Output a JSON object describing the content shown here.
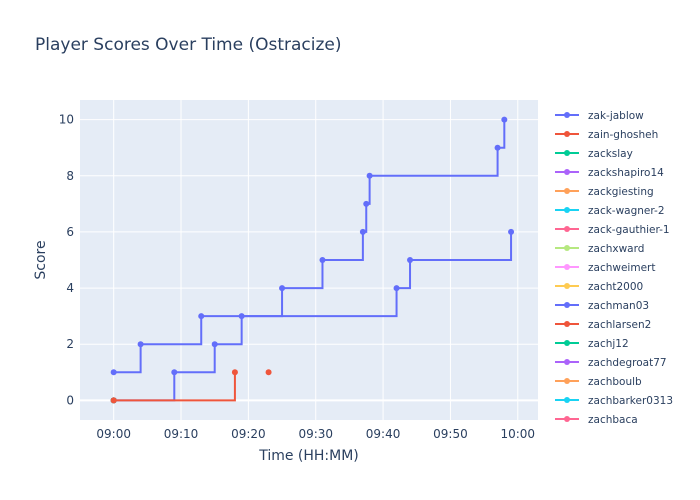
{
  "chart_data": {
    "type": "line",
    "line_shape": "step",
    "title": "Player Scores Over Time (Ostracize)",
    "xlabel": "Time (HH:MM)",
    "ylabel": "Score",
    "x_ticks": [
      "09:00",
      "09:10",
      "09:20",
      "09:30",
      "09:40",
      "09:50",
      "10:00"
    ],
    "y_ticks": [
      0,
      2,
      4,
      6,
      8,
      10
    ],
    "xlim": [
      "08:55",
      "10:03"
    ],
    "ylim": [
      -0.7,
      10.7
    ],
    "grid": true,
    "legend_position": "right",
    "series": [
      {
        "name": "zak-jablow",
        "color": "#636efa",
        "segments": [
          [
            [
              "09:00",
              1
            ],
            [
              "09:04",
              2
            ],
            [
              "09:13",
              3
            ],
            [
              "09:25",
              4
            ],
            [
              "09:31",
              5
            ],
            [
              "09:37",
              6
            ],
            [
              "09:37:30",
              7
            ],
            [
              "09:38",
              8
            ],
            [
              "09:57",
              9
            ],
            [
              "09:58",
              10
            ]
          ]
        ]
      },
      {
        "name": "zain-ghosheh",
        "color": "#ef553b",
        "segments": [
          [
            [
              "09:00",
              0
            ],
            [
              "09:18",
              1
            ]
          ],
          [
            [
              "09:23",
              1
            ]
          ]
        ]
      },
      {
        "name": "zackslay",
        "color": "#00cc96",
        "segments": [
          [
            [
              "09:00",
              0
            ]
          ]
        ]
      },
      {
        "name": "zackshapiro14",
        "color": "#ab63fa",
        "segments": [
          [
            [
              "09:00",
              0
            ]
          ]
        ]
      },
      {
        "name": "zackgiesting",
        "color": "#ffa15a",
        "segments": [
          [
            [
              "09:00",
              0
            ]
          ]
        ]
      },
      {
        "name": "zack-wagner-2",
        "color": "#19d3f3",
        "segments": [
          [
            [
              "09:00",
              0
            ]
          ]
        ]
      },
      {
        "name": "zack-gauthier-1",
        "color": "#ff6692",
        "segments": [
          [
            [
              "09:00",
              0
            ]
          ]
        ]
      },
      {
        "name": "zachxward",
        "color": "#b6e880",
        "segments": [
          [
            [
              "09:00",
              0
            ]
          ]
        ]
      },
      {
        "name": "zachweimert",
        "color": "#ff97ff",
        "segments": [
          [
            [
              "09:00",
              0
            ]
          ]
        ]
      },
      {
        "name": "zacht2000",
        "color": "#fecb52",
        "segments": [
          [
            [
              "09:00",
              0
            ]
          ]
        ]
      },
      {
        "name": "zachman03",
        "color": "#636efa",
        "segments": [
          [
            [
              "09:00",
              0
            ],
            [
              "09:09",
              1
            ],
            [
              "09:15",
              2
            ],
            [
              "09:19",
              3
            ],
            [
              "09:42",
              4
            ],
            [
              "09:44",
              5
            ],
            [
              "09:59",
              6
            ]
          ]
        ]
      },
      {
        "name": "zachlarsen2",
        "color": "#ef553b",
        "segments": [
          [
            [
              "09:00",
              0
            ]
          ]
        ]
      },
      {
        "name": "zachj12",
        "color": "#00cc96",
        "segments": [
          [
            [
              "09:00",
              0
            ]
          ]
        ]
      },
      {
        "name": "zachdegroat77",
        "color": "#ab63fa",
        "segments": [
          [
            [
              "09:00",
              0
            ]
          ]
        ]
      },
      {
        "name": "zachboulb",
        "color": "#ffa15a",
        "segments": [
          [
            [
              "09:00",
              0
            ]
          ]
        ]
      },
      {
        "name": "zachbarker0313",
        "color": "#19d3f3",
        "segments": [
          [
            [
              "09:00",
              0
            ]
          ]
        ]
      },
      {
        "name": "zachbaca",
        "color": "#ff6692",
        "segments": [
          [
            [
              "09:00",
              0
            ]
          ]
        ]
      }
    ]
  }
}
